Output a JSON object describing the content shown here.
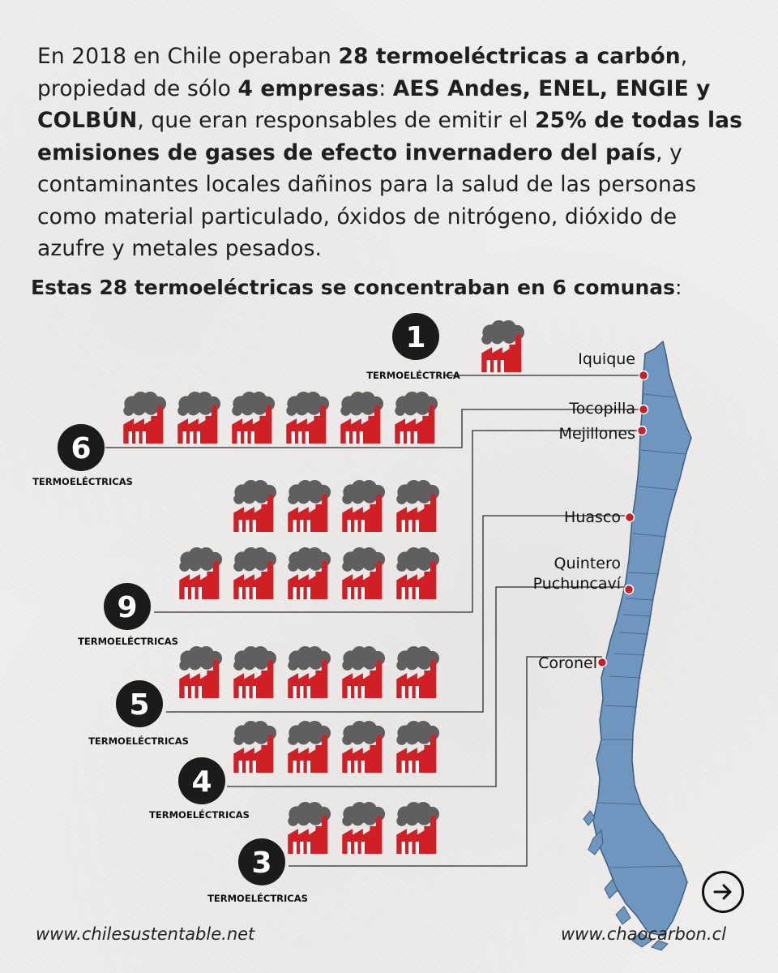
{
  "intro": {
    "t1": "En 2018 en Chile operaban ",
    "b1": "28 termoeléctricas a carbón",
    "t2": ", propiedad de sólo ",
    "b2": "4 empresas",
    "t3": ": ",
    "b3": "AES Andes, ENEL, ENGIE y COLBÚN",
    "t4": ", que eran responsables de emitir el ",
    "b4": "25% de todas las emisiones de gases de efecto invernadero del país",
    "t5": ", y contaminantes locales dañinos para la salud de las personas como material particulado, óxidos de nitrógeno, dióxido de azufre y metales pesados."
  },
  "subtitle": {
    "text": "Estas 28 termoeléctricas se concentraban en 6 comunas",
    "colon": ":"
  },
  "locations": [
    {
      "city": "Iquique",
      "count": 1,
      "count_label": "1",
      "caption": "TERMOELÉCTRICA"
    },
    {
      "city": "Tocopilla",
      "count": 6,
      "count_label": "6",
      "caption": "TERMOELÉCTRICAS"
    },
    {
      "city": "Mejillones",
      "count": 9,
      "count_label": "9",
      "caption": "TERMOELÉCTRICAS"
    },
    {
      "city": "Huasco",
      "count": 5,
      "count_label": "5",
      "caption": "TERMOELÉCTRICAS"
    },
    {
      "city": "Quintero\nPuchuncaví",
      "count": 4,
      "count_label": "4",
      "caption": "TERMOELÉCTRICAS"
    },
    {
      "city": "Coronel",
      "count": 3,
      "count_label": "3",
      "caption": "TERMOELÉCTRICAS"
    }
  ],
  "icons": {
    "plant": "factory-smoke-icon",
    "next": "arrow-right-icon"
  },
  "colors": {
    "factory": "#d11f26",
    "smoke": "#5f5f5f",
    "badge": "#1b1b1b",
    "map": "#6f96be",
    "map_border": "#3e5e80",
    "dot": "#c8202a"
  },
  "footer": {
    "left": "www.chilesustentable.net",
    "right": "www.chaocarbon.cl"
  }
}
